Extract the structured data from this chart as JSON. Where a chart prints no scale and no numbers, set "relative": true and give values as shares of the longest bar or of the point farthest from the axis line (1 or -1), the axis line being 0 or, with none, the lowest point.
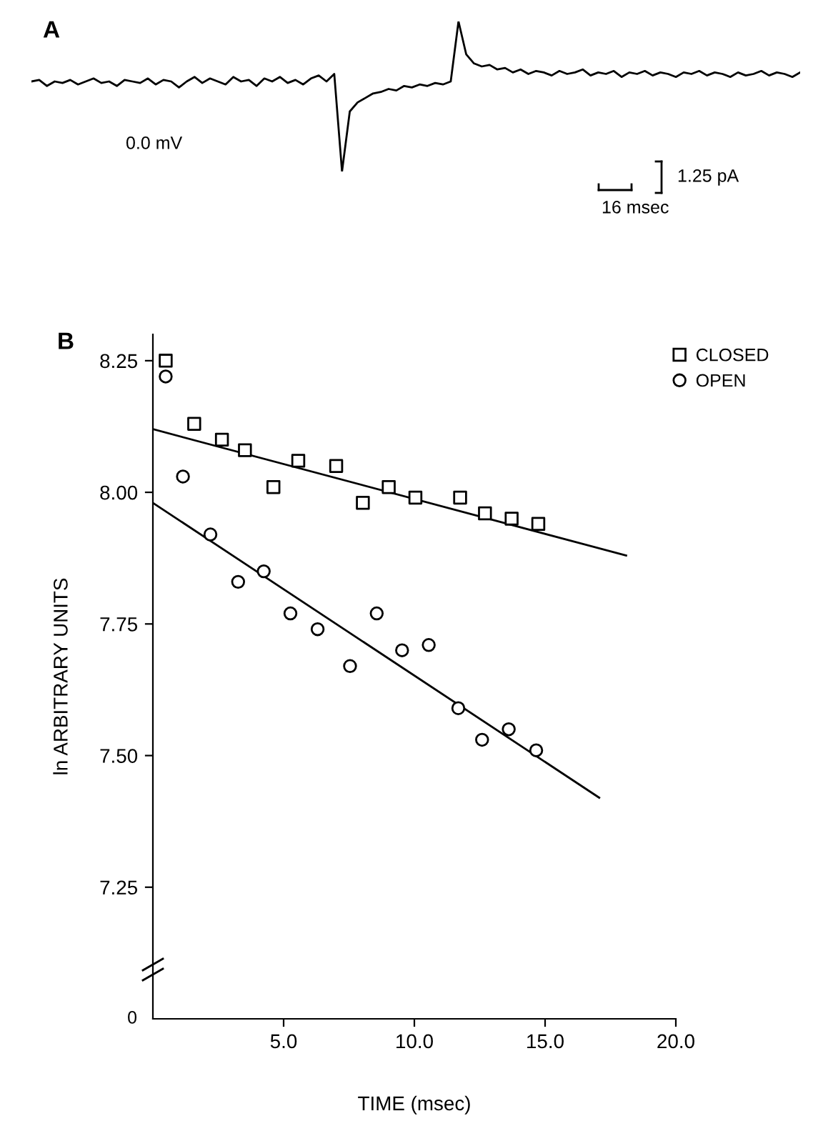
{
  "chart_data": [
    {
      "type": "line",
      "title": "A",
      "relative": true,
      "color": "#000000",
      "categories": [
        null,
        null,
        null,
        null,
        null,
        null,
        null,
        null,
        null,
        null,
        null,
        null,
        null,
        null,
        null,
        null,
        null,
        null,
        null,
        null,
        null,
        null,
        null,
        null,
        null,
        null,
        null,
        null,
        null,
        null,
        null,
        null,
        null,
        null,
        null,
        null,
        null,
        null,
        null,
        null,
        null,
        null,
        null,
        null,
        null,
        null,
        null,
        null,
        null,
        null,
        null,
        null,
        null,
        null,
        null,
        null,
        null,
        null,
        null,
        null,
        null,
        null,
        null,
        null,
        null,
        null,
        null,
        null,
        null,
        null,
        null,
        null,
        null,
        null,
        null,
        null,
        null,
        null,
        null,
        null,
        null,
        null,
        null,
        null,
        null,
        null,
        null,
        null,
        null,
        null,
        null,
        null,
        null,
        null,
        null,
        null,
        null,
        null,
        null,
        null
      ],
      "values": [
        0.6,
        0.61,
        0.57,
        0.6,
        0.59,
        0.61,
        0.58,
        0.6,
        0.62,
        0.59,
        0.6,
        0.57,
        0.61,
        0.6,
        0.59,
        0.62,
        0.58,
        0.61,
        0.6,
        0.56,
        0.6,
        0.63,
        0.59,
        0.62,
        0.6,
        0.58,
        0.63,
        0.6,
        0.61,
        0.57,
        0.62,
        0.6,
        0.63,
        0.59,
        0.61,
        0.58,
        0.62,
        0.64,
        0.6,
        0.65,
        0.0,
        0.4,
        0.46,
        0.49,
        0.52,
        0.53,
        0.55,
        0.54,
        0.57,
        0.56,
        0.58,
        0.57,
        0.59,
        0.58,
        0.6,
        1.0,
        0.78,
        0.72,
        0.7,
        0.71,
        0.68,
        0.69,
        0.66,
        0.68,
        0.65,
        0.67,
        0.66,
        0.64,
        0.67,
        0.65,
        0.66,
        0.68,
        0.64,
        0.66,
        0.65,
        0.67,
        0.63,
        0.66,
        0.65,
        0.67,
        0.64,
        0.66,
        0.65,
        0.63,
        0.66,
        0.65,
        0.67,
        0.64,
        0.66,
        0.65,
        0.63,
        0.66,
        0.64,
        0.65,
        0.67,
        0.64,
        0.66,
        0.65,
        0.63,
        0.66
      ],
      "annotations": [
        "0.0 mV",
        "1.25 pA",
        "16 msec"
      ]
    },
    {
      "type": "scatter",
      "title": "B",
      "xlabel": "TIME (msec)",
      "ylabel": "ln ARBITRARY UNITS",
      "legend": "top right",
      "grid": false,
      "xlim": [
        0,
        20
      ],
      "xticks": [
        {
          "value": 5,
          "label": "5.0"
        },
        {
          "value": 10,
          "label": "10.0"
        },
        {
          "value": 15,
          "label": "15.0"
        },
        {
          "value": 20,
          "label": "20.0"
        }
      ],
      "ylim": [
        7.0,
        8.3
      ],
      "annotations": [
        "0"
      ],
      "yticks": [
        7.25,
        {
          "value": 7.5,
          "label": "7.50"
        },
        {
          "value": 7.75,
          "label": "7.75"
        },
        {
          "value": 8.0,
          "label": "8.00"
        },
        8.25
      ],
      "series": [
        {
          "name": "CLOSED",
          "type": "scatter",
          "marker": "square",
          "color": "#000000",
          "x": [
            0.49,
            1.58,
            2.64,
            3.52,
            4.61,
            5.56,
            7.01,
            8.03,
            9.02,
            10.04,
            11.75,
            12.7,
            13.72,
            14.74
          ],
          "values": [
            8.25,
            8.13,
            8.1,
            8.08,
            8.01,
            8.06,
            8.05,
            7.98,
            8.01,
            7.99,
            7.99,
            7.96,
            7.95,
            7.94
          ]
        },
        {
          "name": "OPEN",
          "type": "scatter",
          "marker": "circle",
          "color": "#000000",
          "x": [
            0.49,
            1.15,
            2.2,
            3.26,
            4.24,
            5.26,
            6.3,
            7.54,
            8.56,
            9.53,
            10.55,
            11.68,
            12.59,
            13.61,
            14.66
          ],
          "values": [
            8.22,
            8.03,
            7.92,
            7.83,
            7.85,
            7.77,
            7.74,
            7.67,
            7.77,
            7.7,
            7.71,
            7.59,
            7.53,
            7.55,
            7.51
          ]
        },
        {
          "type": "line",
          "color": "#000000",
          "line_style": "solid",
          "x": [
            0,
            18.1
          ],
          "values": [
            8.12,
            7.88
          ]
        },
        {
          "type": "line",
          "color": "#000000",
          "line_style": "solid",
          "x": [
            0,
            17.07
          ],
          "values": [
            7.98,
            7.42
          ]
        }
      ]
    }
  ]
}
